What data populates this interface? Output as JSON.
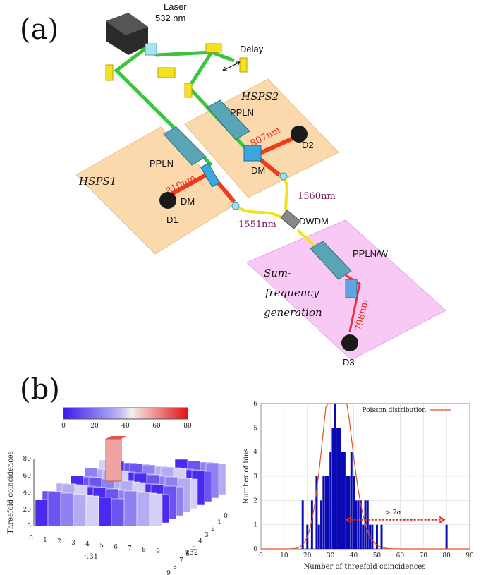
{
  "panel_a": {
    "label": "(a)",
    "laser_label": "Laser",
    "laser_wavelength": "532 nm",
    "delay_label": "Delay",
    "hsps1": "HSPS1",
    "hsps2": "HSPS2",
    "ppln1": "PPLN",
    "ppln2": "PPLN",
    "dm1": "DM",
    "dm2": "DM",
    "d1": "D1",
    "d2": "D2",
    "d3": "D3",
    "wl_810": "810nm",
    "wl_807": "807nm",
    "wl_798": "798nm",
    "wl_1551": "1551nm",
    "wl_1560": "1560nm",
    "dwdm": "DWDM",
    "pplnw": "PPLN/W",
    "sfg_line1": "Sum-",
    "sfg_line2": "frequency",
    "sfg_line3": "generation"
  },
  "panel_b": {
    "label": "(b)"
  },
  "chart_data": [
    {
      "type": "heatmap",
      "title": "",
      "zlabel": "Threefold coincidences",
      "xlabel": "τ31",
      "ylabel": "τ32",
      "x_ticks": [
        "0",
        "1",
        "2",
        "3",
        "4",
        "5",
        "6",
        "7",
        "8",
        "9"
      ],
      "y_ticks": [
        "0",
        "1",
        "2",
        "3",
        "4",
        "5",
        "6",
        "7",
        "8",
        "9"
      ],
      "z_ticks": [
        "0",
        "10",
        "20",
        "30",
        "40",
        "50",
        "60",
        "70",
        "80"
      ],
      "colorbar_ticks": [
        "0",
        "20",
        "40",
        "60",
        "80"
      ],
      "colorbar_range": [
        0,
        80
      ],
      "peak": {
        "tau31": 0,
        "tau32": 0,
        "value": 80
      }
    },
    {
      "type": "bar",
      "title": "",
      "xlabel": "Number of threefold coincidences",
      "ylabel": "Number of bins",
      "xlim": [
        0,
        90
      ],
      "ylim": [
        0,
        6
      ],
      "x_ticks": [
        "0",
        "10",
        "20",
        "30",
        "40",
        "50",
        "60",
        "70",
        "80",
        "90"
      ],
      "y_ticks": [
        "0",
        "1",
        "2",
        "3",
        "4",
        "5",
        "6"
      ],
      "legend": "Poisson distribution",
      "legend_position": "top-right",
      "annotation": "> 7σ",
      "bar_color": "#0a0ab4",
      "curve_color": "#e0502a",
      "x": [
        18,
        20,
        22,
        24,
        25,
        26,
        27,
        28,
        29,
        30,
        31,
        32,
        33,
        34,
        35,
        36,
        37,
        38,
        39,
        40,
        41,
        42,
        43,
        44,
        45,
        46,
        47,
        48,
        50,
        52,
        80
      ],
      "values": [
        2,
        1,
        2,
        3,
        1,
        2,
        3,
        3,
        3,
        4,
        5,
        6,
        5,
        5,
        4,
        4,
        3,
        3,
        4,
        3,
        2,
        2,
        2,
        1,
        2,
        2,
        1,
        1,
        1,
        1,
        1
      ],
      "poisson_mean": 33.1
    }
  ]
}
